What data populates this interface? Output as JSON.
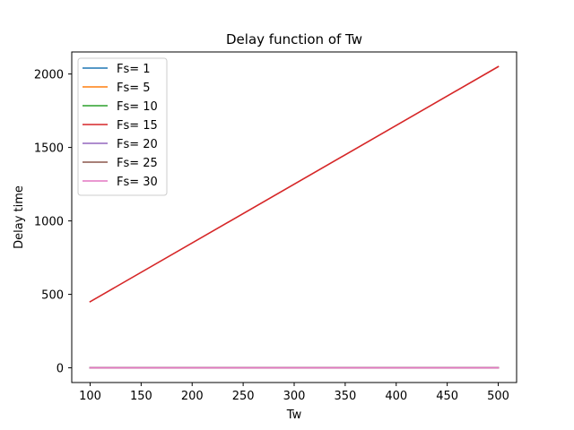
{
  "chart_data": {
    "type": "line",
    "title": "Delay function of Tw",
    "xlabel": "Tw",
    "ylabel": "Delay time",
    "x": [
      100,
      500
    ],
    "xlim": [
      82,
      518
    ],
    "ylim": [
      -100,
      2150
    ],
    "xticks": [
      100,
      150,
      200,
      250,
      300,
      350,
      400,
      450,
      500
    ],
    "yticks": [
      0,
      500,
      1000,
      1500,
      2000
    ],
    "grid": false,
    "legend_position": "top-left",
    "series": [
      {
        "name": "Fs= 1",
        "values": [
          0,
          0
        ],
        "color": "#1f77b4"
      },
      {
        "name": "Fs= 5",
        "values": [
          0,
          0
        ],
        "color": "#ff7f0e"
      },
      {
        "name": "Fs= 10",
        "values": [
          0,
          0
        ],
        "color": "#2ca02c"
      },
      {
        "name": "Fs= 15",
        "values": [
          450,
          2050
        ],
        "color": "#d62728"
      },
      {
        "name": "Fs= 20",
        "values": [
          0,
          0
        ],
        "color": "#9467bd"
      },
      {
        "name": "Fs= 25",
        "values": [
          0,
          0
        ],
        "color": "#8c564b"
      },
      {
        "name": "Fs= 30",
        "values": [
          0,
          0
        ],
        "color": "#e377c2"
      }
    ]
  }
}
